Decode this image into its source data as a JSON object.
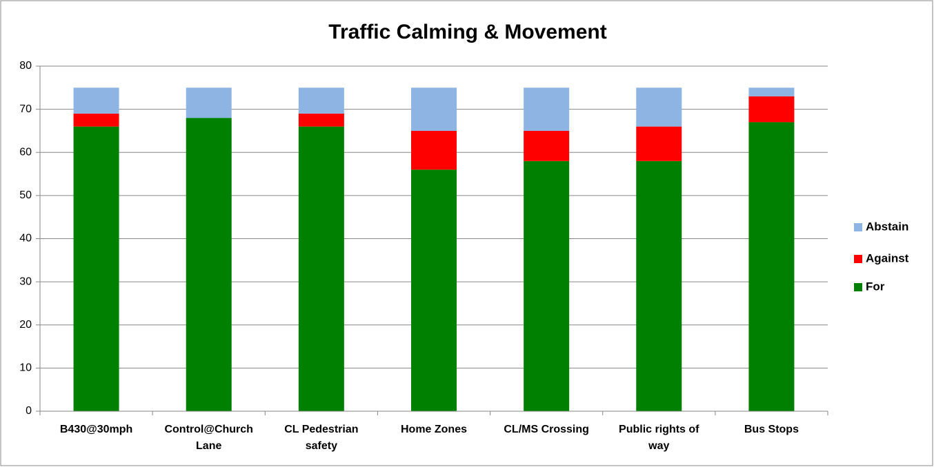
{
  "chart_data": {
    "type": "stacked_bar",
    "title": "Traffic Calming & Movement",
    "categories": [
      "B430@30mph",
      "Control@Church Lane",
      "CL Pedestrian safety",
      "Home Zones",
      "CL/MS Crossing",
      "Public rights of way",
      "Bus Stops"
    ],
    "series": [
      {
        "name": "For",
        "color": "#008000",
        "values": [
          66,
          68,
          66,
          56,
          58,
          58,
          67
        ]
      },
      {
        "name": "Against",
        "color": "#ff0000",
        "values": [
          3,
          0,
          3,
          9,
          7,
          8,
          6
        ]
      },
      {
        "name": "Abstain",
        "color": "#8eb4e3",
        "values": [
          6,
          7,
          6,
          10,
          10,
          9,
          2
        ]
      }
    ],
    "ylim": [
      0,
      80
    ],
    "yticks": [
      0,
      10,
      20,
      30,
      40,
      50,
      60,
      70,
      80
    ],
    "grid": true,
    "legend": "right"
  }
}
